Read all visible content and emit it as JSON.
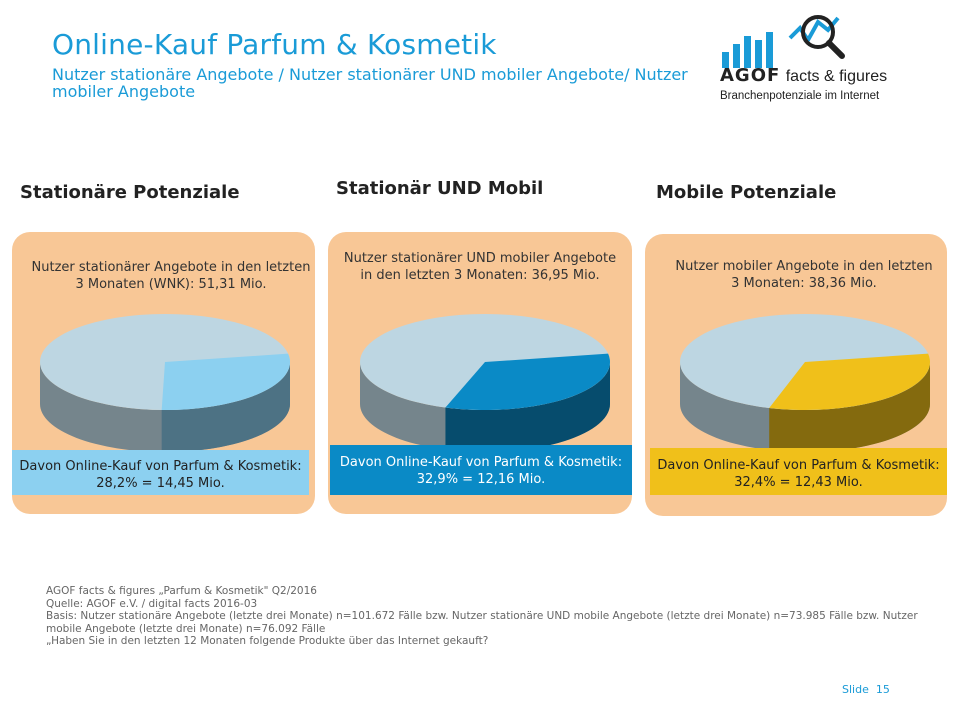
{
  "header": {
    "title": "Online-Kauf Parfum & Kosmetik",
    "subtitle": "Nutzer stationäre Angebote / Nutzer stationärer UND mobiler Angebote/ Nutzer mobiler Angebote"
  },
  "logo": {
    "brand": "AGOF",
    "tagline": "facts & figures",
    "subline": "Branchenpotenziale im Internet"
  },
  "sections": [
    {
      "heading": "Stationäre Potenziale",
      "description": "Nutzer stationärer Angebote in den letzten 3 Monaten (WNK): 51,31 Mio.",
      "highlight": "Davon Online-Kauf von Parfum & Kosmetik: 28,2% = 14,45 Mio."
    },
    {
      "heading": "Stationär UND Mobil",
      "description": "Nutzer stationärer UND mobiler Angebote in den letzten 3 Monaten: 36,95 Mio.",
      "highlight": "Davon Online-Kauf von Parfum & Kosmetik: 32,9% = 12,16 Mio."
    },
    {
      "heading": "Mobile Potenziale",
      "description": "Nutzer mobiler Angebote in den letzten 3 Monaten: 38,36 Mio.",
      "highlight": "Davon Online-Kauf von Parfum & Kosmetik: 32,4% = 12,43 Mio."
    }
  ],
  "chart_data": [
    {
      "type": "pie",
      "slices": [
        {
          "label": "Davon Online-Kauf von Parfum & Kosmetik",
          "value": 28.2
        },
        {
          "label": "",
          "value": 71.8
        }
      ],
      "colors": {
        "highlight": "#8cd0f0",
        "rest": "#bdd6e2",
        "band": "#8cd0f0",
        "band_text": "#222222"
      }
    },
    {
      "type": "pie",
      "slices": [
        {
          "label": "Davon Online-Kauf von Parfum & Kosmetik",
          "value": 32.9
        },
        {
          "label": "",
          "value": 67.1
        }
      ],
      "colors": {
        "highlight": "#0a8ac6",
        "rest": "#bdd6e2",
        "band": "#0a8ac6",
        "band_text": "#ffffff"
      }
    },
    {
      "type": "pie",
      "slices": [
        {
          "label": "Davon Online-Kauf von Parfum & Kosmetik",
          "value": 32.4
        },
        {
          "label": "",
          "value": 67.6
        }
      ],
      "colors": {
        "highlight": "#f0c01a",
        "rest": "#bdd6e2",
        "band": "#f0c01a",
        "band_text": "#222222"
      }
    }
  ],
  "footer": {
    "lines": [
      "AGOF facts & figures „Parfum & Kosmetik\" Q2/2016",
      "Quelle: AGOF e.V. / digital facts 2016-03",
      "Basis: Nutzer stationäre Angebote (letzte drei Monate) n=101.672 Fälle bzw. Nutzer stationäre UND mobile Angebote (letzte drei Monate) n=73.985 Fälle bzw. Nutzer mobile Angebote (letzte drei Monate) n=76.092 Fälle",
      "„Haben Sie in den letzten 12 Monaten folgende Produkte über das Internet gekauft?"
    ],
    "slide_label": "Slide",
    "slide_number": "15"
  },
  "colors": {
    "accent": "#1a9bd7",
    "panel": "#f8c796"
  }
}
